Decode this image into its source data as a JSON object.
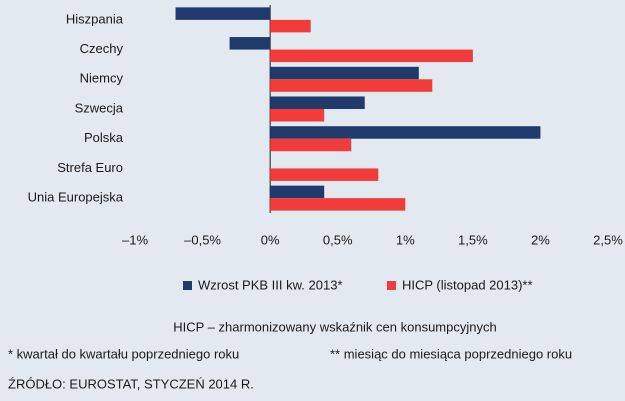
{
  "chart_data": {
    "type": "hbar",
    "categories": [
      "Hiszpania",
      "Czechy",
      "Niemcy",
      "Szwecja",
      "Polska",
      "Strefa Euro",
      "Unia Europejska"
    ],
    "series": [
      {
        "name": "Wzrost PKB III kw. 2013*",
        "color": "#1f3a6b",
        "values": [
          -0.7,
          -0.3,
          1.1,
          0.7,
          2.0,
          0,
          0.4
        ]
      },
      {
        "name": "HICP (listopad 2013)**",
        "color": "#f23b3b",
        "values": [
          0.3,
          1.5,
          1.2,
          0.4,
          0.6,
          0.8,
          1.0
        ]
      }
    ],
    "xlim": [
      -1,
      2.5
    ],
    "xticks": [
      {
        "value": -1,
        "label": "–1%"
      },
      {
        "value": -0.5,
        "label": "–0,5%"
      },
      {
        "value": 0,
        "label": "0%"
      },
      {
        "value": 0.5,
        "label": "0,5%"
      },
      {
        "value": 1,
        "label": "1%"
      },
      {
        "value": 1.5,
        "label": "1,5%"
      },
      {
        "value": 2,
        "label": "2%"
      },
      {
        "value": 2.5,
        "label": "2,5%"
      }
    ],
    "legend": "bottom",
    "notes": [
      "HICP – zharmonizowany wskaźnik cen konsumpcyjnych",
      "* kwartał do kwartału poprzedniego roku",
      "** miesiąc do miesiąca poprzedniego roku"
    ],
    "source": "ŹRÓDŁO: EUROSTAT, STYCZEŃ 2014 R."
  }
}
